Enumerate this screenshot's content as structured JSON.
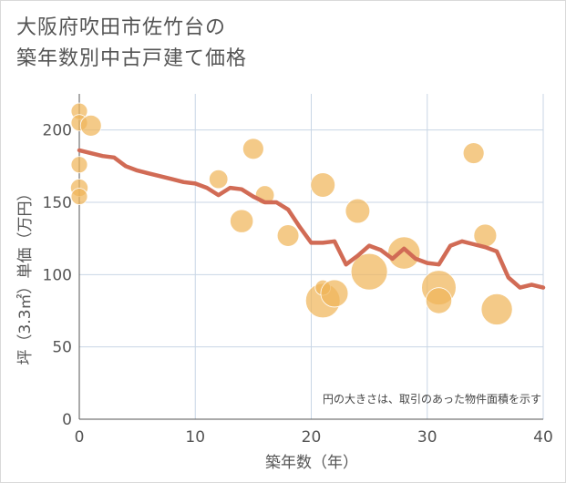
{
  "title_line1": "大阪府吹田市佐竹台の",
  "title_line2": "築年数別中古戸建て価格",
  "chart_data": {
    "type": "scatter",
    "title": "大阪府吹田市佐竹台の築年数別中古戸建て価格",
    "xlabel": "築年数（年）",
    "ylabel": "坪（3.3㎡）単価（万円）",
    "note": "円の大きさは、取引のあった物件面積を示す",
    "xlim": [
      0,
      40
    ],
    "ylim": [
      0,
      225
    ],
    "xticks": [
      0,
      10,
      20,
      30,
      40
    ],
    "yticks": [
      0,
      50,
      100,
      150,
      200
    ],
    "colors": {
      "bubble": "#f0b55a",
      "line": "#d16b55",
      "grid": "#c8d6e5",
      "axis": "#555555"
    },
    "bubbles": [
      {
        "x": 0,
        "y": 213,
        "size": 1
      },
      {
        "x": 0,
        "y": 205,
        "size": 1
      },
      {
        "x": 0,
        "y": 176,
        "size": 1
      },
      {
        "x": 0,
        "y": 160,
        "size": 1.2
      },
      {
        "x": 0,
        "y": 154,
        "size": 1
      },
      {
        "x": 1,
        "y": 203,
        "size": 2
      },
      {
        "x": 12,
        "y": 166,
        "size": 1.5
      },
      {
        "x": 15,
        "y": 187,
        "size": 2
      },
      {
        "x": 14,
        "y": 137,
        "size": 2.6
      },
      {
        "x": 16,
        "y": 155,
        "size": 1.5
      },
      {
        "x": 18,
        "y": 127,
        "size": 2.2
      },
      {
        "x": 21,
        "y": 162,
        "size": 3
      },
      {
        "x": 21,
        "y": 82,
        "size": 7
      },
      {
        "x": 21,
        "y": 91,
        "size": 0.8
      },
      {
        "x": 22,
        "y": 87,
        "size": 4
      },
      {
        "x": 24,
        "y": 144,
        "size": 3
      },
      {
        "x": 25,
        "y": 102,
        "size": 8
      },
      {
        "x": 28,
        "y": 115,
        "size": 6
      },
      {
        "x": 31,
        "y": 91,
        "size": 7
      },
      {
        "x": 31,
        "y": 82,
        "size": 3.5
      },
      {
        "x": 34,
        "y": 184,
        "size": 2
      },
      {
        "x": 35,
        "y": 127,
        "size": 2.5
      },
      {
        "x": 36,
        "y": 76,
        "size": 5.5
      }
    ],
    "trend": {
      "x": [
        0,
        1,
        2,
        3,
        4,
        5,
        6,
        7,
        8,
        9,
        10,
        11,
        12,
        13,
        14,
        15,
        16,
        17,
        18,
        19,
        20,
        21,
        22,
        23,
        24,
        25,
        26,
        27,
        28,
        29,
        30,
        31,
        32,
        33,
        34,
        35,
        36,
        37,
        38,
        39,
        40
      ],
      "y": [
        186,
        184,
        182,
        181,
        175,
        172,
        170,
        168,
        166,
        164,
        163,
        160,
        155,
        160,
        159,
        154,
        150,
        150,
        145,
        133,
        122,
        122,
        123,
        107,
        113,
        120,
        117,
        111,
        118,
        111,
        108,
        107,
        120,
        123,
        121,
        119,
        116,
        98,
        91,
        93,
        91
      ]
    }
  }
}
